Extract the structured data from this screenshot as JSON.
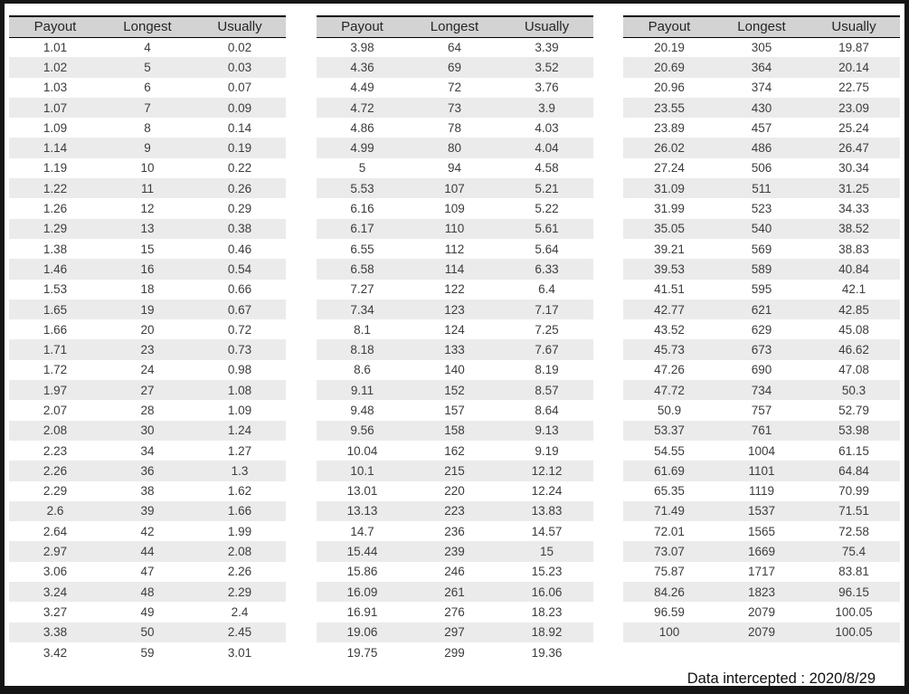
{
  "columns": [
    "Payout",
    "Longest",
    "Usually"
  ],
  "tables": [
    {
      "rows": [
        [
          "1.01",
          "4",
          "0.02"
        ],
        [
          "1.02",
          "5",
          "0.03"
        ],
        [
          "1.03",
          "6",
          "0.07"
        ],
        [
          "1.07",
          "7",
          "0.09"
        ],
        [
          "1.09",
          "8",
          "0.14"
        ],
        [
          "1.14",
          "9",
          "0.19"
        ],
        [
          "1.19",
          "10",
          "0.22"
        ],
        [
          "1.22",
          "11",
          "0.26"
        ],
        [
          "1.26",
          "12",
          "0.29"
        ],
        [
          "1.29",
          "13",
          "0.38"
        ],
        [
          "1.38",
          "15",
          "0.46"
        ],
        [
          "1.46",
          "16",
          "0.54"
        ],
        [
          "1.53",
          "18",
          "0.66"
        ],
        [
          "1.65",
          "19",
          "0.67"
        ],
        [
          "1.66",
          "20",
          "0.72"
        ],
        [
          "1.71",
          "23",
          "0.73"
        ],
        [
          "1.72",
          "24",
          "0.98"
        ],
        [
          "1.97",
          "27",
          "1.08"
        ],
        [
          "2.07",
          "28",
          "1.09"
        ],
        [
          "2.08",
          "30",
          "1.24"
        ],
        [
          "2.23",
          "34",
          "1.27"
        ],
        [
          "2.26",
          "36",
          "1.3"
        ],
        [
          "2.29",
          "38",
          "1.62"
        ],
        [
          "2.6",
          "39",
          "1.66"
        ],
        [
          "2.64",
          "42",
          "1.99"
        ],
        [
          "2.97",
          "44",
          "2.08"
        ],
        [
          "3.06",
          "47",
          "2.26"
        ],
        [
          "3.24",
          "48",
          "2.29"
        ],
        [
          "3.27",
          "49",
          "2.4"
        ],
        [
          "3.38",
          "50",
          "2.45"
        ],
        [
          "3.42",
          "59",
          "3.01"
        ]
      ]
    },
    {
      "rows": [
        [
          "3.98",
          "64",
          "3.39"
        ],
        [
          "4.36",
          "69",
          "3.52"
        ],
        [
          "4.49",
          "72",
          "3.76"
        ],
        [
          "4.72",
          "73",
          "3.9"
        ],
        [
          "4.86",
          "78",
          "4.03"
        ],
        [
          "4.99",
          "80",
          "4.04"
        ],
        [
          "5",
          "94",
          "4.58"
        ],
        [
          "5.53",
          "107",
          "5.21"
        ],
        [
          "6.16",
          "109",
          "5.22"
        ],
        [
          "6.17",
          "110",
          "5.61"
        ],
        [
          "6.55",
          "112",
          "5.64"
        ],
        [
          "6.58",
          "114",
          "6.33"
        ],
        [
          "7.27",
          "122",
          "6.4"
        ],
        [
          "7.34",
          "123",
          "7.17"
        ],
        [
          "8.1",
          "124",
          "7.25"
        ],
        [
          "8.18",
          "133",
          "7.67"
        ],
        [
          "8.6",
          "140",
          "8.19"
        ],
        [
          "9.11",
          "152",
          "8.57"
        ],
        [
          "9.48",
          "157",
          "8.64"
        ],
        [
          "9.56",
          "158",
          "9.13"
        ],
        [
          "10.04",
          "162",
          "9.19"
        ],
        [
          "10.1",
          "215",
          "12.12"
        ],
        [
          "13.01",
          "220",
          "12.24"
        ],
        [
          "13.13",
          "223",
          "13.83"
        ],
        [
          "14.7",
          "236",
          "14.57"
        ],
        [
          "15.44",
          "239",
          "15"
        ],
        [
          "15.86",
          "246",
          "15.23"
        ],
        [
          "16.09",
          "261",
          "16.06"
        ],
        [
          "16.91",
          "276",
          "18.23"
        ],
        [
          "19.06",
          "297",
          "18.92"
        ],
        [
          "19.75",
          "299",
          "19.36"
        ]
      ]
    },
    {
      "rows": [
        [
          "20.19",
          "305",
          "19.87"
        ],
        [
          "20.69",
          "364",
          "20.14"
        ],
        [
          "20.96",
          "374",
          "22.75"
        ],
        [
          "23.55",
          "430",
          "23.09"
        ],
        [
          "23.89",
          "457",
          "25.24"
        ],
        [
          "26.02",
          "486",
          "26.47"
        ],
        [
          "27.24",
          "506",
          "30.34"
        ],
        [
          "31.09",
          "511",
          "31.25"
        ],
        [
          "31.99",
          "523",
          "34.33"
        ],
        [
          "35.05",
          "540",
          "38.52"
        ],
        [
          "39.21",
          "569",
          "38.83"
        ],
        [
          "39.53",
          "589",
          "40.84"
        ],
        [
          "41.51",
          "595",
          "42.1"
        ],
        [
          "42.77",
          "621",
          "42.85"
        ],
        [
          "43.52",
          "629",
          "45.08"
        ],
        [
          "45.73",
          "673",
          "46.62"
        ],
        [
          "47.26",
          "690",
          "47.08"
        ],
        [
          "47.72",
          "734",
          "50.3"
        ],
        [
          "50.9",
          "757",
          "52.79"
        ],
        [
          "53.37",
          "761",
          "53.98"
        ],
        [
          "54.55",
          "1004",
          "61.15"
        ],
        [
          "61.69",
          "1101",
          "64.84"
        ],
        [
          "65.35",
          "1119",
          "70.99"
        ],
        [
          "71.49",
          "1537",
          "71.51"
        ],
        [
          "72.01",
          "1565",
          "72.58"
        ],
        [
          "73.07",
          "1669",
          "75.4"
        ],
        [
          "75.87",
          "1717",
          "83.81"
        ],
        [
          "84.26",
          "1823",
          "96.15"
        ],
        [
          "96.59",
          "2079",
          "100.05"
        ],
        [
          "100",
          "2079",
          "100.05"
        ]
      ]
    }
  ],
  "footer": {
    "note": "Data intercepted : 2020/8/29"
  },
  "colors": {
    "header_bg": "#d3d3d3",
    "stripe_bg": "#ebebeb",
    "text": "#3c3c3c",
    "frame": "#151515"
  }
}
